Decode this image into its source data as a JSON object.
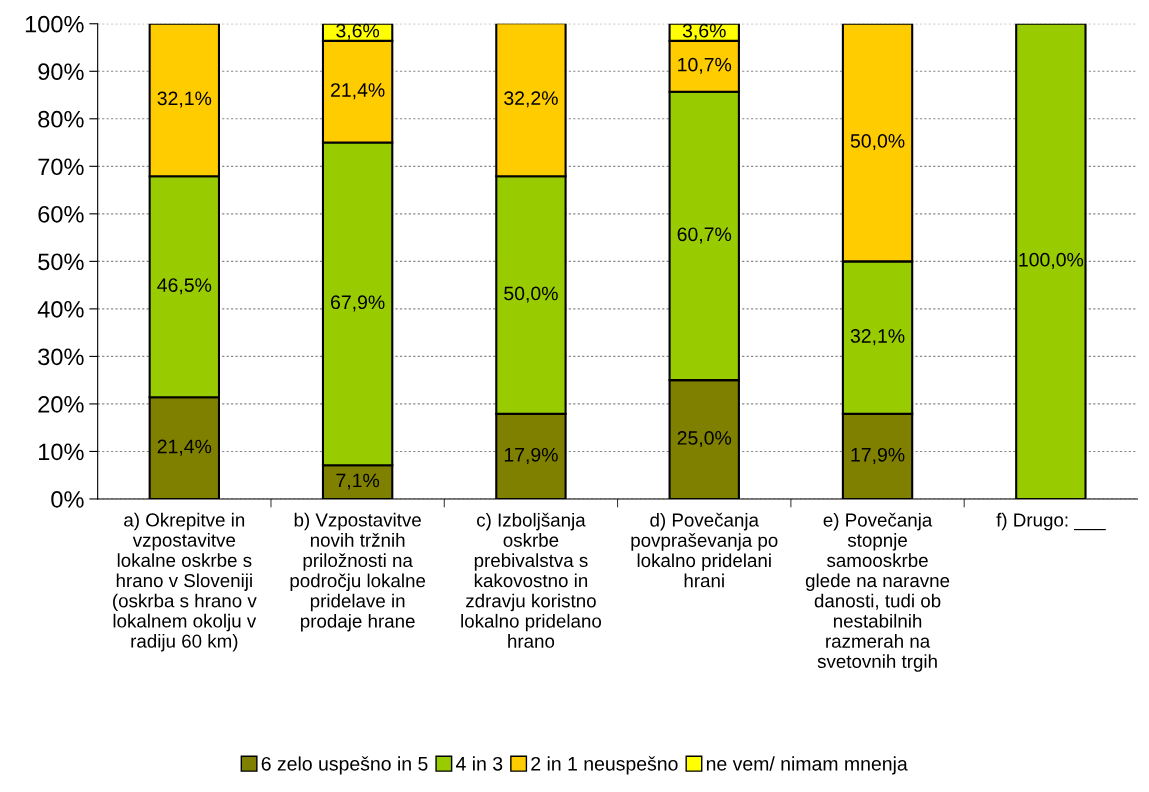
{
  "chart_data": {
    "type": "bar",
    "stacked": true,
    "categories": [
      "a) Okrepitve in\nvzpostavitve\nlokalne oskrbe s\nhrano v Sloveniji\n(oskrba s hrano v\nlokalnem okolju v\nradiju 60 km)",
      "b) Vzpostavitve\nnovih tržnih\npriložnosti na\npodročju lokalne\npridelave in\nprodaje hrane",
      "c) Izboljšanja\noskrbe\nprebivalstva s\nkakovostno in\nzdravju koristno\nlokalno pridelano\nhrano",
      "d) Povečanja\npovpraševanja po\nlokalno pridelani\nhrani",
      "e) Povečanja\nstopnje\nsamooskrbe\nglede na naravne\ndanosti, tudi ob\nnestabilnih\nrazmerah na\nsvetovnih trgih",
      "f) Drugo: ___"
    ],
    "series": [
      {
        "name": "6 zelo uspešno in 5",
        "color": "#808000",
        "values": [
          21.4,
          7.1,
          17.9,
          25.0,
          17.9,
          null
        ],
        "value_labels": [
          "21,4%",
          "7,1%",
          "17,9%",
          "25,0%",
          "17,9%",
          null
        ]
      },
      {
        "name": "4 in 3",
        "color": "#99cc00",
        "values": [
          46.5,
          67.9,
          50.0,
          60.7,
          32.1,
          100.0
        ],
        "value_labels": [
          "46,5%",
          "67,9%",
          "50,0%",
          "60,7%",
          "32,1%",
          "100,0%"
        ]
      },
      {
        "name": "2 in 1 neuspešno",
        "color": "#ffcc00",
        "values": [
          32.1,
          21.4,
          32.2,
          10.7,
          50.0,
          null
        ],
        "value_labels": [
          "32,1%",
          "21,4%",
          "32,2%",
          "10,7%",
          "50,0%",
          null
        ]
      },
      {
        "name": "ne vem/ nimam mnenja",
        "color": "#ffff00",
        "values": [
          null,
          3.6,
          null,
          3.6,
          null,
          null
        ],
        "value_labels": [
          null,
          "3,6%",
          null,
          "3,6%",
          null,
          null
        ]
      }
    ],
    "ylim": [
      0,
      100
    ],
    "yticks": [
      {
        "value": 0,
        "label": "0%"
      },
      {
        "value": 10,
        "label": "10%"
      },
      {
        "value": 20,
        "label": "20%"
      },
      {
        "value": 30,
        "label": "30%"
      },
      {
        "value": 40,
        "label": "40%"
      },
      {
        "value": 50,
        "label": "50%"
      },
      {
        "value": 60,
        "label": "60%"
      },
      {
        "value": 70,
        "label": "70%"
      },
      {
        "value": 80,
        "label": "80%"
      },
      {
        "value": 90,
        "label": "90%"
      },
      {
        "value": 100,
        "label": "100%"
      }
    ],
    "grid": "y",
    "legend": "bottom"
  }
}
